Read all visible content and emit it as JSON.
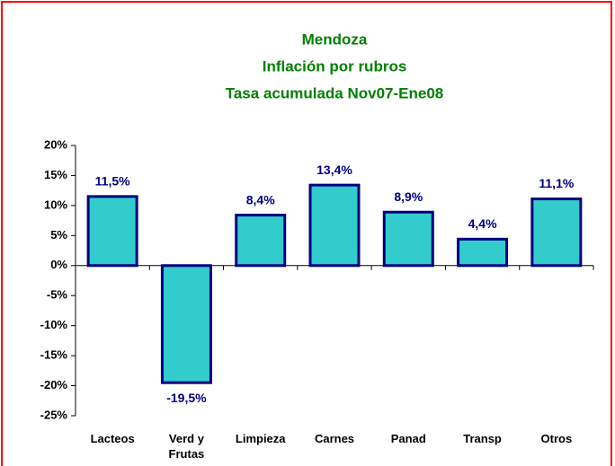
{
  "chart_data": {
    "type": "bar",
    "title_lines": [
      "Mendoza",
      "Inflación por rubros",
      "Tasa acumulada Nov07-Ene08"
    ],
    "categories": [
      "Lacteos",
      "Verd y Frutas",
      "Limpieza",
      "Carnes",
      "Panad",
      "Transp",
      "Otros"
    ],
    "values": [
      11.5,
      -19.5,
      8.4,
      13.4,
      8.9,
      4.4,
      11.1
    ],
    "value_labels": [
      "11,5%",
      "-19,5%",
      "8,4%",
      "13,4%",
      "8,9%",
      "4,4%",
      "11,1%"
    ],
    "color": "#33cccc",
    "edge_color": "#000080",
    "ylim": [
      -25,
      20
    ],
    "yticks": [
      {
        "value": -25,
        "label": "-25%"
      },
      {
        "value": -20,
        "label": "-20%"
      },
      {
        "value": -15,
        "label": "-15%"
      },
      {
        "value": -10,
        "label": "-10%"
      },
      {
        "value": -5,
        "label": "-5%"
      },
      {
        "value": 0,
        "label": "0%"
      },
      {
        "value": 5,
        "label": "5%"
      },
      {
        "value": 10,
        "label": "10%"
      },
      {
        "value": 15,
        "label": "15%"
      },
      {
        "value": 20,
        "label": "20%"
      }
    ],
    "grid": false
  }
}
